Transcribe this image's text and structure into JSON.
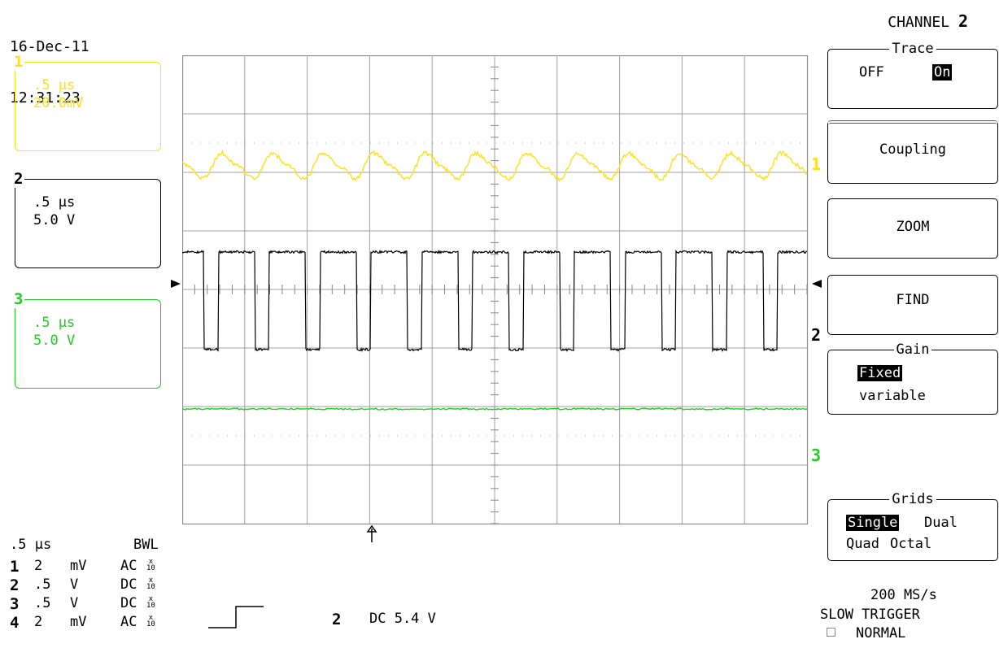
{
  "header": {
    "date": "16-Dec-11",
    "time": "12:31:23"
  },
  "channels": [
    {
      "num": "1",
      "timebase": ".5 µs",
      "volts": "20.0mV",
      "color": "#ffe01a"
    },
    {
      "num": "2",
      "timebase": ".5 µs",
      "volts": "5.0 V",
      "color": "#000000"
    },
    {
      "num": "3",
      "timebase": ".5 µs",
      "volts": "5.0 V",
      "color": "#22cc22"
    }
  ],
  "trace_markers": {
    "ch1": "1",
    "ch2": "2",
    "ch3": "3"
  },
  "menu": {
    "title_prefix": "CHANNEL",
    "title_channel": "2",
    "trace": {
      "caption": "Trace",
      "off": "OFF",
      "on": "On"
    },
    "coupling": "Coupling",
    "zoom": "ZOOM",
    "find": "FIND",
    "gain": {
      "caption": "Gain",
      "fixed": "Fixed",
      "variable": "variable"
    },
    "grids": {
      "caption": "Grids",
      "single": "Single",
      "dual": "Dual",
      "quad": "Quad",
      "octal": "Octal"
    }
  },
  "status": {
    "timebase": ".5 µs",
    "bwl": "BWL",
    "rows": [
      {
        "ch": "1",
        "val": "2",
        "unit": "mV",
        "coupling": "AC"
      },
      {
        "ch": "2",
        "val": ".5",
        "unit": "V",
        "coupling": "DC"
      },
      {
        "ch": "3",
        "val": ".5",
        "unit": "V",
        "coupling": "DC"
      },
      {
        "ch": "4",
        "val": "2",
        "unit": "mV",
        "coupling": "AC"
      }
    ],
    "probe_x": "x",
    "probe_10": "10",
    "trigger_channel": "2",
    "trigger_level": "DC 5.4 V",
    "sample_rate": "200 MS/s",
    "trigger_mode": "SLOW TRIGGER",
    "acq_mode": "NORMAL"
  }
}
